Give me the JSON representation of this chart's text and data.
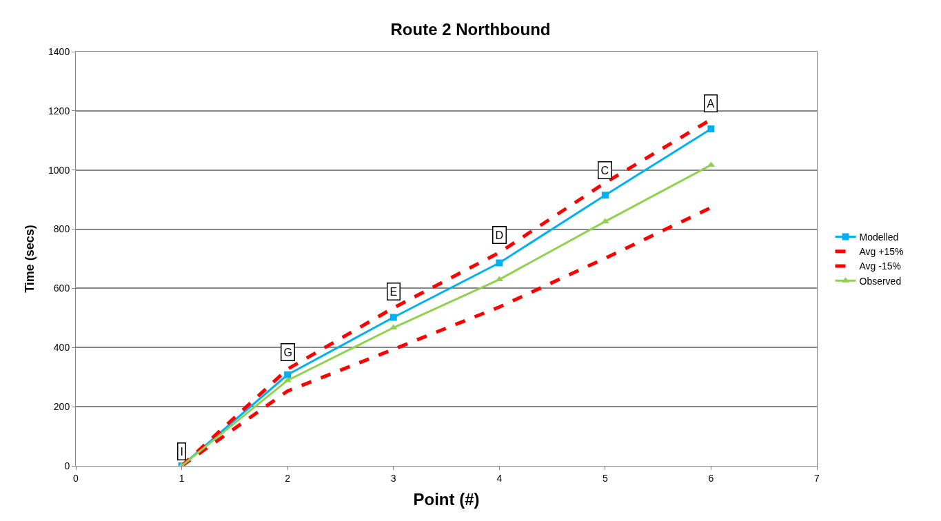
{
  "chart_data": {
    "type": "line",
    "title": "Route 2 Northbound",
    "xlabel": "Point (#)",
    "ylabel": "Time (secs)",
    "x": [
      1,
      2,
      3,
      4,
      5,
      6
    ],
    "series": [
      {
        "name": "Modelled",
        "color": "#00b0f0",
        "values": [
          0,
          308,
          502,
          686,
          915,
          1139
        ],
        "marker": "square",
        "line_style": "solid"
      },
      {
        "name": "Avg +15%",
        "color": "#ff0000",
        "values": [
          0,
          327,
          534,
          721,
          957,
          1171
        ],
        "marker": "none",
        "line_style": "dashed"
      },
      {
        "name": "Avg -15%",
        "color": "#ff0000",
        "values": [
          0,
          253,
          394,
          537,
          702,
          873
        ],
        "marker": "none",
        "line_style": "dashed"
      },
      {
        "name": "Observed",
        "color": "#92d050",
        "values": [
          0,
          289,
          467,
          630,
          826,
          1017
        ],
        "marker": "triangle",
        "line_style": "solid"
      }
    ],
    "annotations": [
      {
        "text": "I",
        "x": 1,
        "y": 50
      },
      {
        "text": "G",
        "x": 2,
        "y": 385
      },
      {
        "text": "E",
        "x": 3,
        "y": 590
      },
      {
        "text": "D",
        "x": 4,
        "y": 780
      },
      {
        "text": "C",
        "x": 5,
        "y": 1000
      },
      {
        "text": "A",
        "x": 6,
        "y": 1225
      }
    ],
    "xlim": [
      0,
      7
    ],
    "xticks": [
      0,
      1,
      2,
      3,
      4,
      5,
      6,
      7
    ],
    "ylim": [
      0,
      1400
    ],
    "yticks": [
      0,
      200,
      400,
      600,
      800,
      1000,
      1200,
      1400
    ],
    "grid": "y",
    "legend": "right"
  }
}
